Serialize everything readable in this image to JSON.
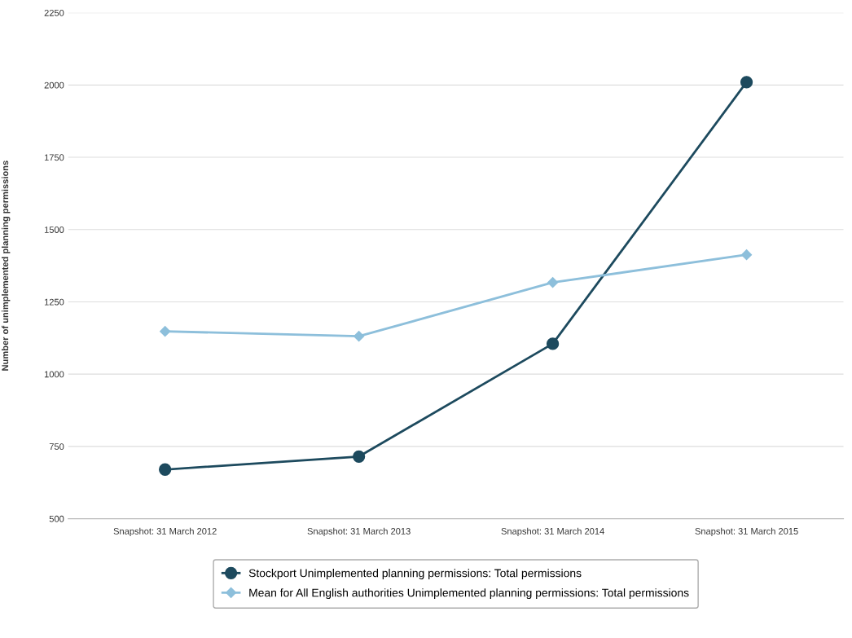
{
  "chart_data": {
    "type": "line",
    "ylabel": "Number of unimplemented planning permissions",
    "categories": [
      "Snapshot: 31 March 2012",
      "Snapshot: 31 March 2013",
      "Snapshot: 31 March 2014",
      "Snapshot: 31 March 2015"
    ],
    "series": [
      {
        "name": "Stockport Unimplemented planning permissions: Total permissions",
        "color": "#1d4a5e",
        "marker": "circle",
        "values": [
          670,
          715,
          1105,
          2010
        ]
      },
      {
        "name": "Mean for All English authorities Unimplemented planning permissions: Total permissions",
        "color": "#8dbfdb",
        "marker": "diamond",
        "values": [
          1148,
          1131,
          1317,
          1413
        ]
      }
    ],
    "ylim": [
      500,
      2250
    ],
    "yticks": [
      500,
      750,
      1000,
      1250,
      1500,
      1750,
      2000,
      2250
    ],
    "grid": "y",
    "legend": "bottom",
    "line_style": "solid"
  }
}
